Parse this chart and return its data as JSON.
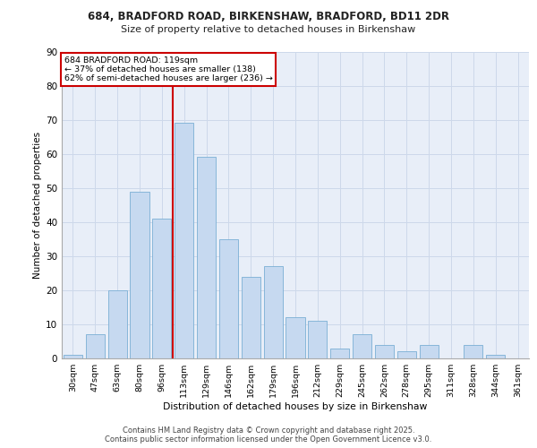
{
  "title1": "684, BRADFORD ROAD, BIRKENSHAW, BRADFORD, BD11 2DR",
  "title2": "Size of property relative to detached houses in Birkenshaw",
  "xlabel": "Distribution of detached houses by size in Birkenshaw",
  "ylabel": "Number of detached properties",
  "categories": [
    "30sqm",
    "47sqm",
    "63sqm",
    "80sqm",
    "96sqm",
    "113sqm",
    "129sqm",
    "146sqm",
    "162sqm",
    "179sqm",
    "196sqm",
    "212sqm",
    "229sqm",
    "245sqm",
    "262sqm",
    "278sqm",
    "295sqm",
    "311sqm",
    "328sqm",
    "344sqm",
    "361sqm"
  ],
  "values": [
    1,
    7,
    20,
    49,
    41,
    69,
    59,
    35,
    24,
    27,
    12,
    11,
    3,
    7,
    4,
    2,
    4,
    0,
    4,
    1,
    0
  ],
  "bar_color": "#c6d9f0",
  "bar_edge_color": "#7bafd4",
  "grid_color": "#cdd8ea",
  "background_color": "#e8eef8",
  "vline_color": "#cc0000",
  "annotation_title": "684 BRADFORD ROAD: 119sqm",
  "annotation_line1": "← 37% of detached houses are smaller (138)",
  "annotation_line2": "62% of semi-detached houses are larger (236) →",
  "annotation_box_color": "#ffffff",
  "annotation_box_edge_color": "#cc0000",
  "ylim": [
    0,
    90
  ],
  "yticks": [
    0,
    10,
    20,
    30,
    40,
    50,
    60,
    70,
    80,
    90
  ],
  "footer1": "Contains HM Land Registry data © Crown copyright and database right 2025.",
  "footer2": "Contains public sector information licensed under the Open Government Licence v3.0."
}
